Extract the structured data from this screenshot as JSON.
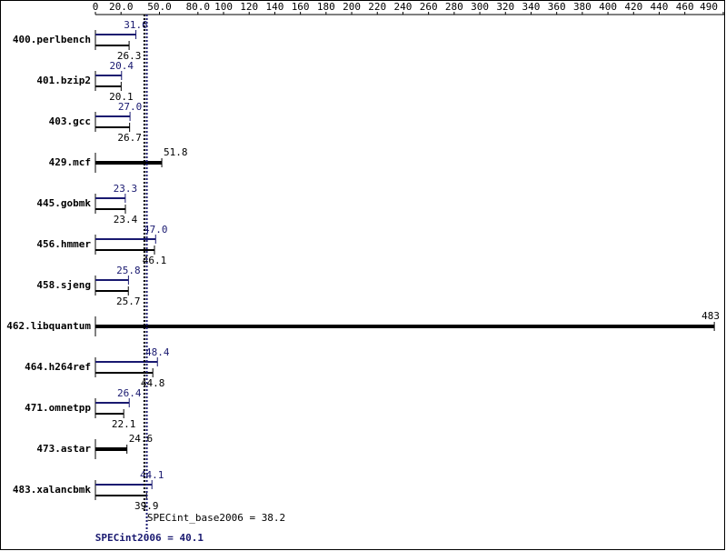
{
  "chart_data": {
    "type": "bar",
    "orientation": "horizontal",
    "categories": [
      "400.perlbench",
      "401.bzip2",
      "403.gcc",
      "429.mcf",
      "445.gobmk",
      "456.hmmer",
      "458.sjeng",
      "462.libquantum",
      "464.h264ref",
      "471.omnetpp",
      "473.astar",
      "483.xalancbmk"
    ],
    "series": [
      {
        "color": "#191970",
        "values": [
          31.6,
          20.4,
          27.0,
          null,
          23.3,
          47.0,
          25.8,
          null,
          48.4,
          26.4,
          null,
          44.1
        ],
        "value_labels": [
          "31.6",
          "20.4",
          "27.0",
          null,
          "23.3",
          "47.0",
          "25.8",
          null,
          "48.4",
          "26.4",
          null,
          "44.1"
        ]
      },
      {
        "color": "#000000",
        "values": [
          26.3,
          20.1,
          26.7,
          51.8,
          23.4,
          46.1,
          25.7,
          483,
          44.8,
          22.1,
          24.6,
          39.9
        ],
        "value_labels": [
          "26.3",
          "20.1",
          "26.7",
          "51.8",
          "23.4",
          "46.1",
          "25.7",
          "483",
          "44.8",
          "22.1",
          "24.6",
          "39.9"
        ]
      }
    ],
    "xlim": [
      0,
      490
    ],
    "xticks": [
      0,
      {
        "value": 20,
        "label": "20.0"
      },
      {
        "value": 50,
        "label": "50.0"
      },
      {
        "value": 80,
        "label": "80.0"
      },
      100,
      120,
      140,
      160,
      180,
      200,
      220,
      240,
      260,
      280,
      300,
      320,
      340,
      360,
      380,
      400,
      420,
      440,
      460,
      490
    ],
    "reference_lines": [
      {
        "label": "SPECint_base2006 = 38.2",
        "value": 38.2,
        "color": "#000000"
      },
      {
        "label": "SPECint2006 = 40.1",
        "value": 40.1,
        "color": "#191970"
      }
    ]
  }
}
